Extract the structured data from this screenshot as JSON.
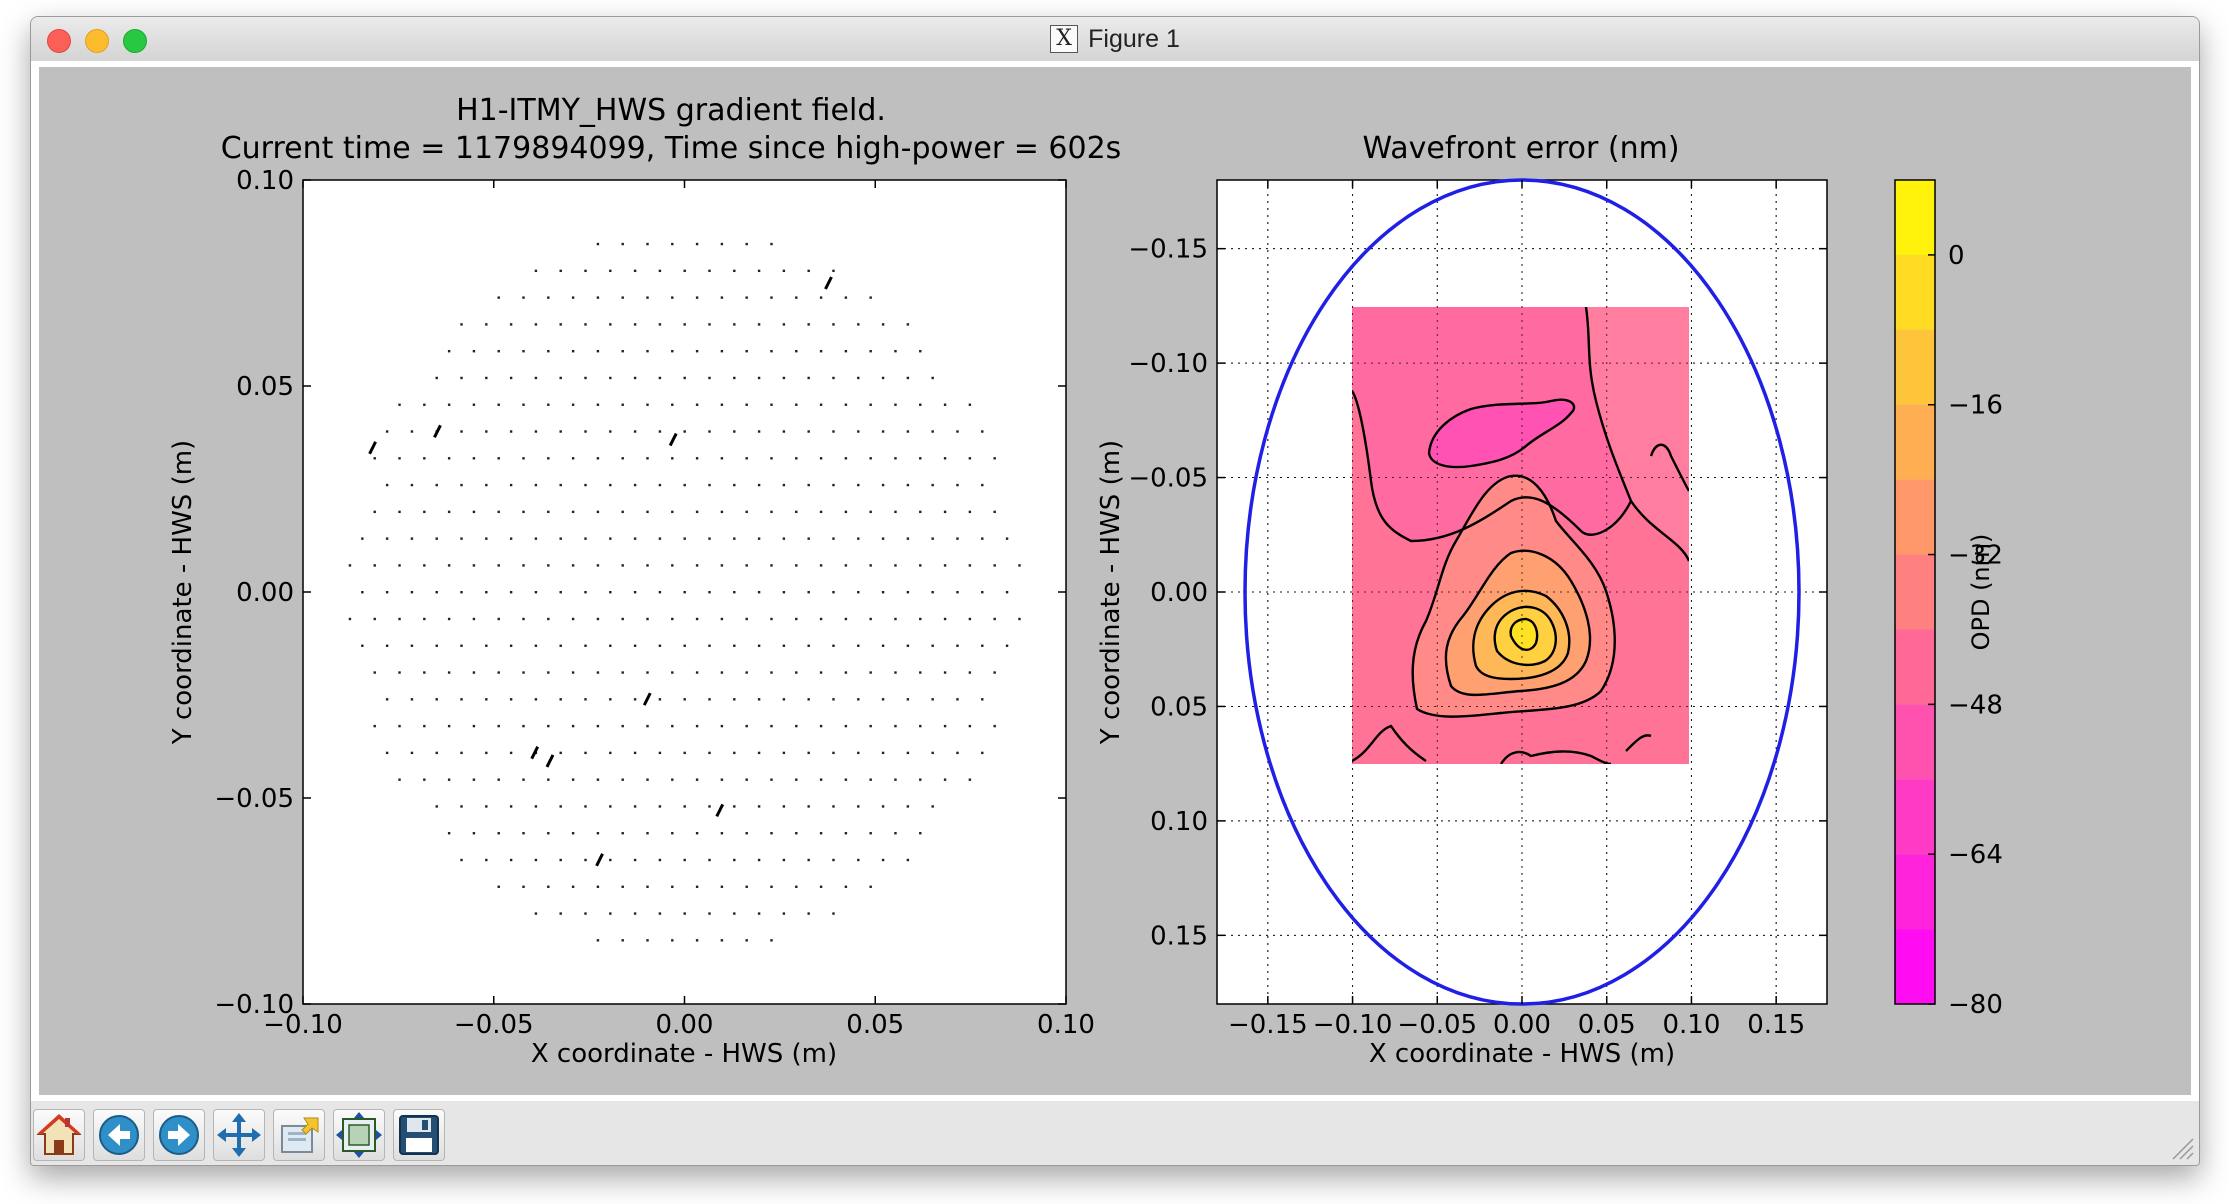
{
  "window": {
    "title": "Figure 1",
    "app_icon": "x11-icon"
  },
  "figure": {
    "left_title_line1": "H1-ITMY_HWS gradient field.",
    "left_title_line2": "Current time = 1179894099, Time since high-power = 602s",
    "right_title": "Wavefront error (nm)",
    "colorbar_label": "OPD (nm)"
  },
  "toolbar": {
    "buttons": [
      {
        "icon": "home-icon",
        "label": "Home"
      },
      {
        "icon": "back-arrow-icon",
        "label": "Back"
      },
      {
        "icon": "forward-arrow-icon",
        "label": "Forward"
      },
      {
        "icon": "pan-move-icon",
        "label": "Pan"
      },
      {
        "icon": "zoom-rect-icon",
        "label": "Zoom"
      },
      {
        "icon": "subplots-config-icon",
        "label": "Subplots"
      },
      {
        "icon": "save-floppy-icon",
        "label": "Save"
      }
    ]
  },
  "chart_data": [
    {
      "type": "scatter",
      "title": "H1-ITMY_HWS gradient field.\nCurrent time = 1179894099, Time since high-power = 602s",
      "xlabel": "X coordinate - HWS (m)",
      "ylabel": "Y coordinate - HWS (m)",
      "xlim": [
        -0.1,
        0.1
      ],
      "ylim": [
        -0.1,
        0.1
      ],
      "xticks": [
        "−0.10",
        "−0.05",
        "0.00",
        "0.05",
        "0.10"
      ],
      "yticks": [
        "−0.10",
        "−0.05",
        "0.00",
        "0.05",
        "0.10"
      ],
      "grid": false,
      "description_points": "regular grid of gradient-arrow dots within a circle",
      "dot_grid": {
        "radius": 0.088,
        "spacing": 0.0065
      },
      "arrows": [
        {
          "x": -0.0815,
          "y": 0.035
        },
        {
          "x": -0.0645,
          "y": 0.039
        },
        {
          "x": -0.0027,
          "y": 0.037
        },
        {
          "x": -0.0095,
          "y": -0.026
        },
        {
          "x": -0.039,
          "y": -0.039
        },
        {
          "x": -0.035,
          "y": -0.041
        },
        {
          "x": 0.0095,
          "y": -0.053
        },
        {
          "x": 0.038,
          "y": 0.075
        },
        {
          "x": -0.022,
          "y": -0.065
        }
      ]
    },
    {
      "type": "contour",
      "title": "Wavefront error (nm)",
      "xlabel": "X coordinate - HWS (m)",
      "ylabel": "Y coordinate - HWS (m)",
      "xlim": [
        -0.18,
        0.18
      ],
      "ylim": [
        -0.18,
        0.18
      ],
      "xticks": [
        "−0.15",
        "−0.10",
        "−0.05",
        "0.00",
        "0.05",
        "0.10",
        "0.15"
      ],
      "yticks": [
        "−0.15",
        "−0.10",
        "−0.05",
        "0.00",
        "0.05",
        "0.10",
        "0.15"
      ],
      "grid": true,
      "contour_region": {
        "x": [
          -0.1,
          0.1
        ],
        "y": [
          -0.1,
          0.1
        ]
      },
      "peak": {
        "x": -0.004,
        "y": -0.027,
        "value": -8
      },
      "levels_nm": [
        -80,
        -72,
        -64,
        -56,
        -48,
        -40,
        -32,
        -24,
        -16,
        -8,
        0,
        8
      ],
      "aperture_ellipse": {
        "cx": 0.0,
        "cy": 0.0,
        "rx": 0.163,
        "ry": 0.17,
        "color": "#1f1fe6"
      },
      "colorbar": {
        "label": "OPD (nm)",
        "ticks": [
          "0",
          "−16",
          "−32",
          "−48",
          "−64",
          "−80"
        ],
        "range": [
          -80,
          8
        ],
        "colormap": "spring"
      }
    }
  ]
}
